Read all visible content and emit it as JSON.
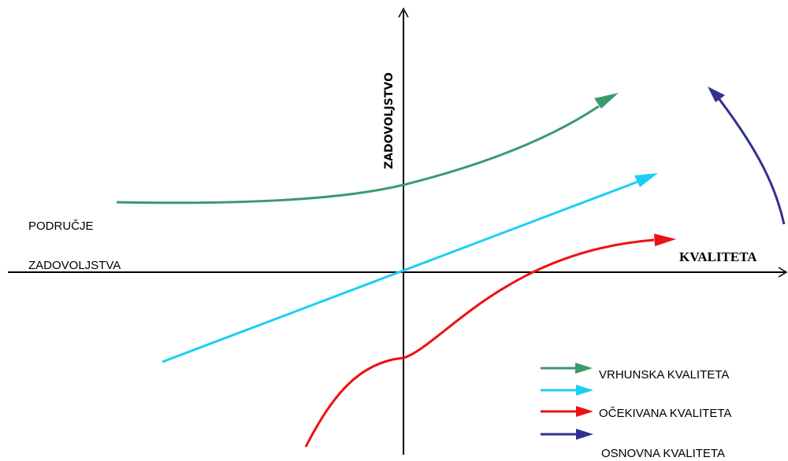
{
  "axes": {
    "x_label": "KVALITETA",
    "y_label": "ZADOVOLJSTVO"
  },
  "region": {
    "line1": "PODRUČJE",
    "line2": "ZADOVOLJSTVA"
  },
  "legend": [
    {
      "label": "VRHUNSKA KVALITETA",
      "color": "#3a9a6a"
    },
    {
      "label": "",
      "color": "#1ccff2"
    },
    {
      "label": "OČEKIVANA KVALITETA",
      "color": "#ee1111"
    },
    {
      "label": "OSNOVNA KVALITETA",
      "color": "#303090"
    }
  ],
  "curves": {
    "top": {
      "color": "#3a9a6a"
    },
    "linear": {
      "color": "#1ccff2"
    },
    "expected": {
      "color": "#ee1111"
    },
    "basic": {
      "color": "#303090"
    }
  }
}
